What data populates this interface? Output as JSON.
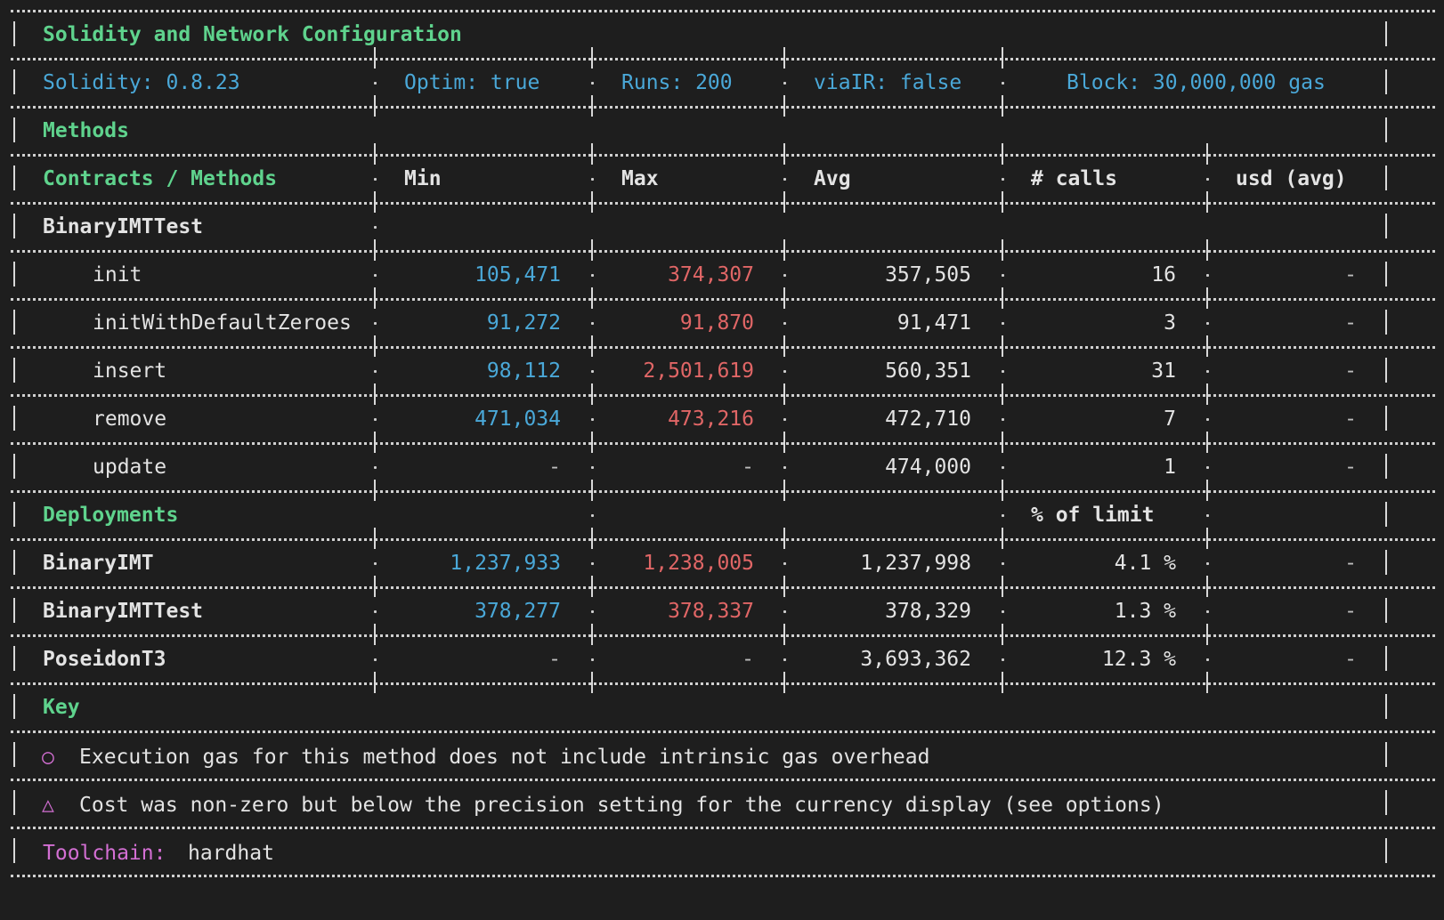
{
  "config": {
    "section_title": "Solidity and Network Configuration",
    "solidity": "Solidity: 0.8.23",
    "optim": "Optim: true",
    "runs": "Runs: 200",
    "via_ir": "viaIR: false",
    "block": "Block: 30,000,000 gas"
  },
  "methods": {
    "section_title": "Methods",
    "headers": {
      "name": "Contracts / Methods",
      "min": "Min",
      "max": "Max",
      "avg": "Avg",
      "calls": "# calls",
      "usd": "usd (avg)"
    },
    "contract": "BinaryIMTTest",
    "rows": [
      {
        "name": "init",
        "min": "105,471",
        "max": "374,307",
        "avg": "357,505",
        "calls": "16",
        "usd": "-"
      },
      {
        "name": "initWithDefaultZeroes",
        "min": "91,272",
        "max": "91,870",
        "avg": "91,471",
        "calls": "3",
        "usd": "-"
      },
      {
        "name": "insert",
        "min": "98,112",
        "max": "2,501,619",
        "avg": "560,351",
        "calls": "31",
        "usd": "-"
      },
      {
        "name": "remove",
        "min": "471,034",
        "max": "473,216",
        "avg": "472,710",
        "calls": "7",
        "usd": "-"
      },
      {
        "name": "update",
        "min": "-",
        "max": "-",
        "avg": "474,000",
        "calls": "1",
        "usd": "-"
      }
    ]
  },
  "deployments": {
    "section_title": "Deployments",
    "limit_header": "% of limit",
    "rows": [
      {
        "name": "BinaryIMT",
        "min": "1,237,933",
        "max": "1,238,005",
        "avg": "1,237,998",
        "limit": "4.1 %",
        "usd": "-"
      },
      {
        "name": "BinaryIMTTest",
        "min": "378,277",
        "max": "378,337",
        "avg": "378,329",
        "limit": "1.3 %",
        "usd": "-"
      },
      {
        "name": "PoseidonT3",
        "min": "-",
        "max": "-",
        "avg": "3,693,362",
        "limit": "12.3 %",
        "usd": "-"
      }
    ]
  },
  "key": {
    "section_title": "Key",
    "items": [
      {
        "symbol": "○",
        "icon": "circle-icon",
        "text": "Execution gas for this method does not include intrinsic gas overhead"
      },
      {
        "symbol": "△",
        "icon": "triangle-icon",
        "text": "Cost was non-zero but below the precision setting for the currency display (see options)"
      }
    ]
  },
  "toolchain": {
    "label": "Toolchain:",
    "value": "hardhat"
  },
  "colors": {
    "background": "#1e1e1e",
    "section": "#5fd38d",
    "config": "#4aa8d8",
    "min": "#4aa8d8",
    "max": "#e06666",
    "toolchain_label": "#d36fd3"
  }
}
